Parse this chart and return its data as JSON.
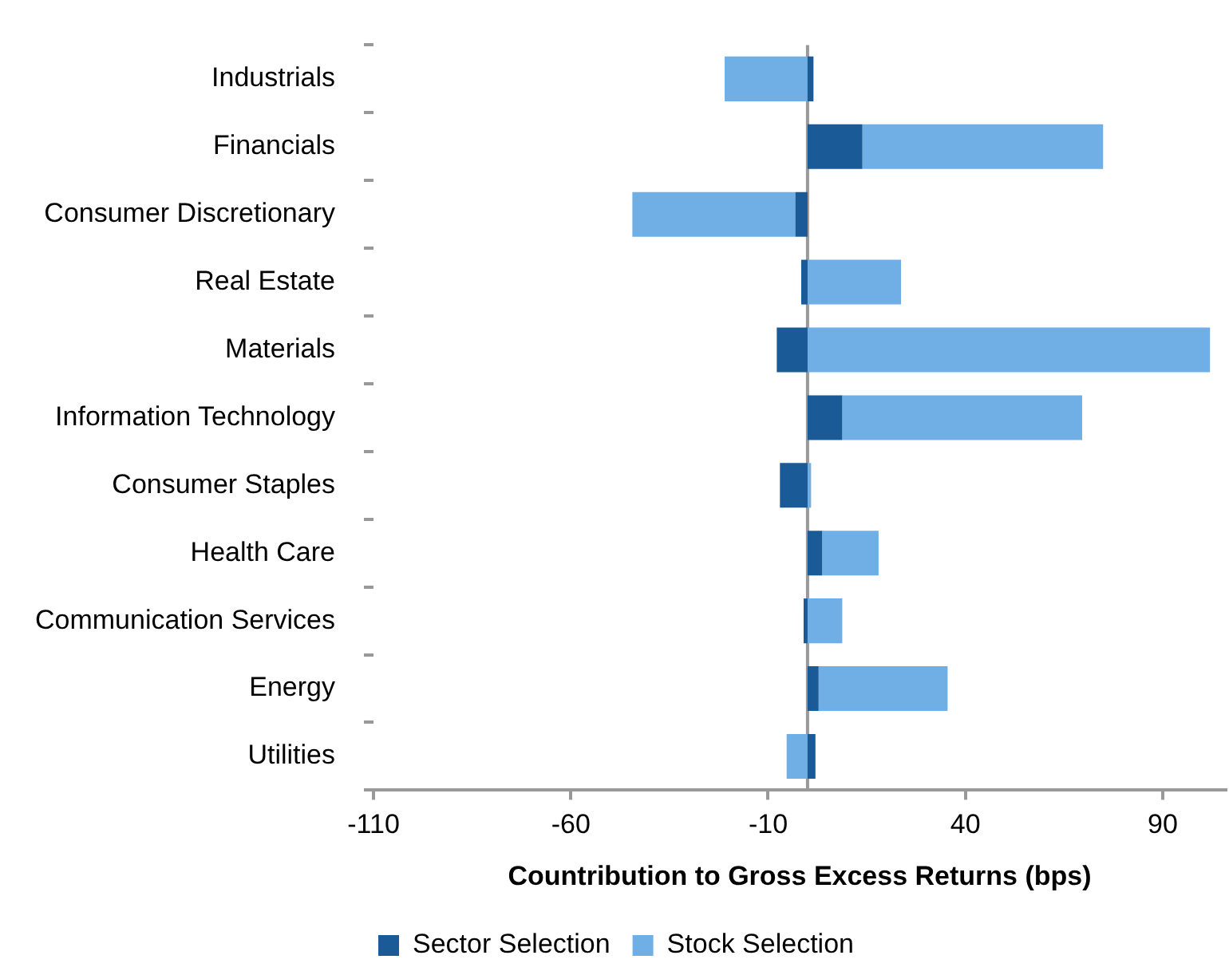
{
  "chart_data": {
    "type": "bar",
    "orientation": "horizontal",
    "stacked": true,
    "categories": [
      "Industrials",
      "Financials",
      "Consumer Discretionary",
      "Real Estate",
      "Materials",
      "Information Technology",
      "Consumer Staples",
      "Health Care",
      "Communication Services",
      "Energy",
      "Utilities"
    ],
    "series": [
      {
        "name": "Sector Selection",
        "color": "#1a5a96",
        "values": [
          1.5,
          13.9,
          -3.1,
          -1.6,
          -7.8,
          8.8,
          -7,
          3.7,
          -1,
          2.8,
          2
        ]
      },
      {
        "name": "Stock Selection",
        "color": "#6fafe6",
        "values": [
          -21,
          61,
          -41.3,
          23.7,
          102,
          60.8,
          0.9,
          14.3,
          8.8,
          32.7,
          -5.3
        ]
      }
    ],
    "xlabel": "Countribution to Gross Excess Returns (bps)",
    "xlim": [
      -110,
      106
    ],
    "xticks": [
      -110,
      -60,
      -10,
      40,
      90
    ],
    "grid": false,
    "legend": "bottom"
  }
}
